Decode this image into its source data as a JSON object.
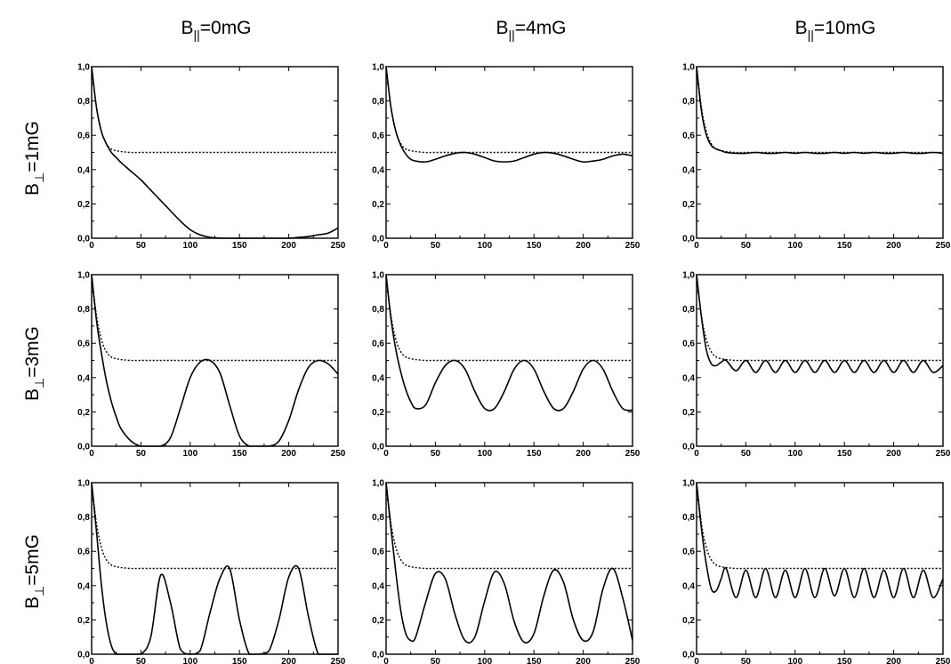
{
  "column_headers": [
    {
      "main": "B",
      "sub": "||",
      "rest": "=0mG"
    },
    {
      "main": "B",
      "sub": "||",
      "rest": "=4mG"
    },
    {
      "main": "B",
      "sub": "||",
      "rest": "=10mG"
    }
  ],
  "row_headers": [
    {
      "main": "B",
      "sub": "⊥",
      "rest": "=1mG"
    },
    {
      "main": "B",
      "sub": "⊥",
      "rest": "=3mG"
    },
    {
      "main": "B",
      "sub": "⊥",
      "rest": "=5mG"
    }
  ],
  "chart_data": {
    "type": "line",
    "grid": false,
    "xlim": [
      0,
      250
    ],
    "ylim": [
      0,
      1
    ],
    "x_ticks": [
      "0",
      "50",
      "100",
      "150",
      "200",
      "250"
    ],
    "y_ticks": [
      "0,0",
      "0,2",
      "0,4",
      "0,6",
      "0,8",
      "1,0"
    ],
    "x": [
      0,
      5,
      10,
      15,
      20,
      25,
      30,
      40,
      50,
      60,
      70,
      80,
      90,
      100,
      110,
      120,
      130,
      140,
      150,
      160,
      170,
      180,
      190,
      200,
      210,
      220,
      230,
      240,
      250
    ],
    "dotted_series_values": [
      1.0,
      0.76,
      0.62,
      0.55,
      0.52,
      0.51,
      0.505,
      0.5,
      0.5,
      0.5,
      0.5,
      0.5,
      0.5,
      0.5,
      0.5,
      0.5,
      0.5,
      0.5,
      0.5,
      0.5,
      0.5,
      0.5,
      0.5,
      0.5,
      0.5,
      0.5,
      0.5,
      0.5,
      0.5
    ],
    "panels": [
      {
        "row": 0,
        "col": 0,
        "solid": [
          1.0,
          0.76,
          0.62,
          0.55,
          0.5,
          0.47,
          0.44,
          0.39,
          0.34,
          0.28,
          0.22,
          0.16,
          0.1,
          0.05,
          0.02,
          0.005,
          0.0,
          0.0,
          0.0,
          0.0,
          0.0,
          0.0,
          0.0,
          0.0,
          0.005,
          0.01,
          0.02,
          0.03,
          0.06
        ]
      },
      {
        "row": 0,
        "col": 1,
        "solid": [
          1.0,
          0.76,
          0.62,
          0.54,
          0.49,
          0.46,
          0.45,
          0.445,
          0.46,
          0.48,
          0.495,
          0.5,
          0.49,
          0.47,
          0.45,
          0.445,
          0.45,
          0.47,
          0.49,
          0.5,
          0.495,
          0.48,
          0.46,
          0.445,
          0.45,
          0.46,
          0.48,
          0.49,
          0.48
        ]
      },
      {
        "row": 0,
        "col": 2,
        "solid": [
          1.0,
          0.74,
          0.6,
          0.54,
          0.52,
          0.51,
          0.5,
          0.495,
          0.495,
          0.5,
          0.495,
          0.495,
          0.5,
          0.495,
          0.5,
          0.495,
          0.495,
          0.5,
          0.495,
          0.5,
          0.495,
          0.5,
          0.495,
          0.495,
          0.5,
          0.495,
          0.495,
          0.5,
          0.495
        ]
      },
      {
        "row": 1,
        "col": 0,
        "solid": [
          1.0,
          0.73,
          0.54,
          0.38,
          0.26,
          0.17,
          0.1,
          0.03,
          0.0,
          0.0,
          0.0,
          0.05,
          0.22,
          0.4,
          0.49,
          0.5,
          0.43,
          0.24,
          0.06,
          0.0,
          0.0,
          0.0,
          0.03,
          0.15,
          0.33,
          0.46,
          0.5,
          0.48,
          0.42
        ]
      },
      {
        "row": 1,
        "col": 1,
        "solid": [
          1.0,
          0.74,
          0.56,
          0.43,
          0.33,
          0.26,
          0.22,
          0.24,
          0.37,
          0.47,
          0.5,
          0.45,
          0.32,
          0.22,
          0.22,
          0.32,
          0.45,
          0.5,
          0.45,
          0.32,
          0.22,
          0.22,
          0.32,
          0.45,
          0.5,
          0.45,
          0.32,
          0.22,
          0.21
        ]
      },
      {
        "row": 1,
        "col": 2,
        "solid": [
          1.0,
          0.75,
          0.56,
          0.48,
          0.47,
          0.49,
          0.5,
          0.44,
          0.5,
          0.43,
          0.5,
          0.43,
          0.5,
          0.43,
          0.5,
          0.43,
          0.5,
          0.43,
          0.5,
          0.43,
          0.5,
          0.43,
          0.5,
          0.43,
          0.5,
          0.43,
          0.5,
          0.43,
          0.47
        ]
      },
      {
        "row": 2,
        "col": 0,
        "solid": [
          1.0,
          0.71,
          0.4,
          0.18,
          0.05,
          0.0,
          0.0,
          0.0,
          0.0,
          0.1,
          0.46,
          0.3,
          0.03,
          0.0,
          0.02,
          0.24,
          0.44,
          0.5,
          0.2,
          0.0,
          0.0,
          0.02,
          0.2,
          0.45,
          0.5,
          0.22,
          0.0,
          0.0,
          0.0
        ]
      },
      {
        "row": 2,
        "col": 1,
        "solid": [
          1.0,
          0.73,
          0.47,
          0.25,
          0.12,
          0.08,
          0.1,
          0.3,
          0.47,
          0.44,
          0.23,
          0.08,
          0.1,
          0.31,
          0.48,
          0.41,
          0.19,
          0.07,
          0.12,
          0.34,
          0.49,
          0.42,
          0.2,
          0.08,
          0.13,
          0.38,
          0.5,
          0.33,
          0.08
        ]
      },
      {
        "row": 2,
        "col": 2,
        "solid": [
          1.0,
          0.73,
          0.52,
          0.38,
          0.37,
          0.44,
          0.5,
          0.33,
          0.49,
          0.33,
          0.5,
          0.33,
          0.49,
          0.33,
          0.5,
          0.33,
          0.5,
          0.34,
          0.5,
          0.33,
          0.5,
          0.33,
          0.49,
          0.33,
          0.5,
          0.33,
          0.49,
          0.33,
          0.44
        ]
      }
    ]
  }
}
